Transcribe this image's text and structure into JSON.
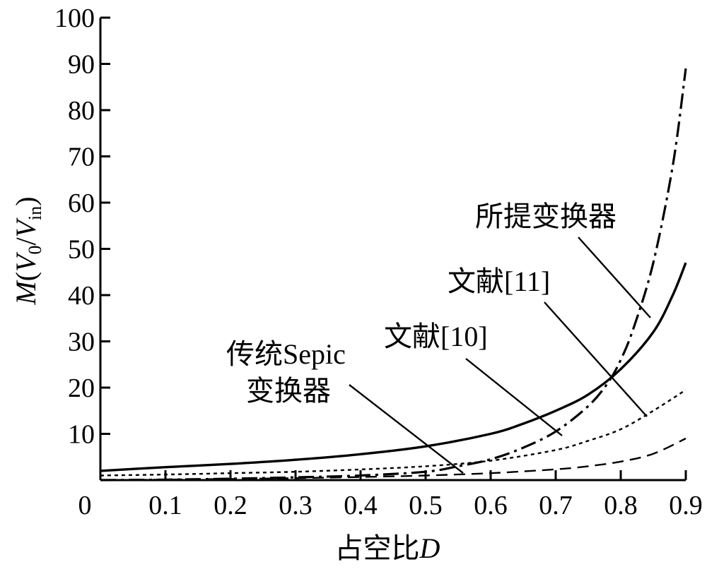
{
  "chart_data": {
    "type": "line",
    "xlabel_text": "占空比",
    "xlabel_var": "D",
    "ylabel": {
      "italic_m": "M",
      "open": "(",
      "v": "V",
      "sub0": "0",
      "slash": "/",
      "v2": "V",
      "sub_in": "in",
      "close": ")"
    },
    "xlim": [
      0,
      0.9
    ],
    "ylim": [
      0,
      100
    ],
    "xticks": [
      "0",
      "0.1",
      "0.2",
      "0.3",
      "0.4",
      "0.5",
      "0.6",
      "0.7",
      "0.8",
      "0.9"
    ],
    "yticks": [
      "10",
      "20",
      "30",
      "40",
      "50",
      "60",
      "70",
      "80",
      "90",
      "100"
    ],
    "grid": false,
    "series": [
      {
        "name": "所提变换器",
        "style": "dashdot",
        "x": [
          0.0,
          0.1,
          0.2,
          0.3,
          0.4,
          0.5,
          0.55,
          0.6,
          0.65,
          0.7,
          0.75,
          0.78,
          0.8,
          0.82,
          0.85,
          0.88,
          0.9
        ],
        "y": [
          0.0,
          0.1,
          0.3,
          0.6,
          1.0,
          1.8,
          3.0,
          4.5,
          7.0,
          10.5,
          16.0,
          21.0,
          26.0,
          33.0,
          47.0,
          68.0,
          89.0
        ]
      },
      {
        "name": "文献[11]",
        "style": "solid",
        "x": [
          0.0,
          0.1,
          0.2,
          0.3,
          0.4,
          0.5,
          0.6,
          0.65,
          0.7,
          0.75,
          0.8,
          0.85,
          0.88,
          0.9
        ],
        "y": [
          2.0,
          2.8,
          3.5,
          4.4,
          5.6,
          7.3,
          10.0,
          12.2,
          15.0,
          18.5,
          24.0,
          32.0,
          40.0,
          47.0
        ]
      },
      {
        "name": "文献[10]",
        "style": "dotted",
        "x": [
          0.0,
          0.1,
          0.2,
          0.3,
          0.4,
          0.5,
          0.6,
          0.7,
          0.75,
          0.8,
          0.85,
          0.9
        ],
        "y": [
          1.0,
          1.2,
          1.5,
          1.8,
          2.3,
          3.0,
          4.2,
          6.5,
          8.5,
          11.0,
          15.0,
          19.5
        ]
      },
      {
        "name": "传统Sepic变换器",
        "style": "dashed",
        "x": [
          0.0,
          0.1,
          0.2,
          0.3,
          0.4,
          0.5,
          0.6,
          0.7,
          0.75,
          0.8,
          0.85,
          0.9
        ],
        "y": [
          0.0,
          0.1,
          0.25,
          0.43,
          0.67,
          1.0,
          1.5,
          2.33,
          3.0,
          4.0,
          5.7,
          9.0
        ]
      }
    ],
    "annotations": [
      {
        "lines": [
          "所提变换器"
        ],
        "target_series": 0,
        "point": [
          0.86,
          37
        ]
      },
      {
        "lines": [
          "文献[11]"
        ],
        "target_series": 1,
        "point": [
          0.72,
          9.5
        ]
      },
      {
        "lines": [
          "文献[10]"
        ],
        "target_series": 2,
        "point": [
          0.845,
          13.5
        ]
      },
      {
        "lines": [
          "传统Sepic",
          "变换器"
        ],
        "target_series": 3,
        "point": [
          0.56,
          1.5
        ]
      }
    ]
  }
}
